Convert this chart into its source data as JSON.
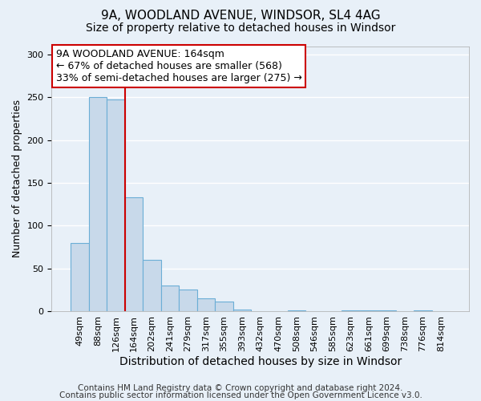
{
  "title1": "9A, WOODLAND AVENUE, WINDSOR, SL4 4AG",
  "title2": "Size of property relative to detached houses in Windsor",
  "xlabel": "Distribution of detached houses by size in Windsor",
  "ylabel": "Number of detached properties",
  "bar_color": "#c8d9ea",
  "bar_edge_color": "#6baed6",
  "bin_labels": [
    "49sqm",
    "88sqm",
    "126sqm",
    "164sqm",
    "202sqm",
    "241sqm",
    "279sqm",
    "317sqm",
    "355sqm",
    "393sqm",
    "432sqm",
    "470sqm",
    "508sqm",
    "546sqm",
    "585sqm",
    "623sqm",
    "661sqm",
    "699sqm",
    "738sqm",
    "776sqm",
    "814sqm"
  ],
  "bar_heights": [
    80,
    250,
    248,
    133,
    60,
    30,
    25,
    15,
    11,
    2,
    0,
    0,
    1,
    0,
    0,
    1,
    1,
    1,
    0,
    1,
    0
  ],
  "vline_x": 2.5,
  "vline_color": "#cc0000",
  "annotation_title": "9A WOODLAND AVENUE: 164sqm",
  "annotation_line1": "← 67% of detached houses are smaller (568)",
  "annotation_line2": "33% of semi-detached houses are larger (275) →",
  "annotation_box_color": "#ffffff",
  "annotation_box_edge": "#cc0000",
  "ylim": [
    0,
    310
  ],
  "yticks": [
    0,
    50,
    100,
    150,
    200,
    250,
    300
  ],
  "footer1": "Contains HM Land Registry data © Crown copyright and database right 2024.",
  "footer2": "Contains public sector information licensed under the Open Government Licence v3.0.",
  "background_color": "#e8f0f8",
  "grid_color": "#ffffff",
  "title1_fontsize": 11,
  "title2_fontsize": 10,
  "xlabel_fontsize": 10,
  "ylabel_fontsize": 9,
  "tick_fontsize": 8,
  "footer_fontsize": 7.5,
  "annotation_fontsize": 9
}
